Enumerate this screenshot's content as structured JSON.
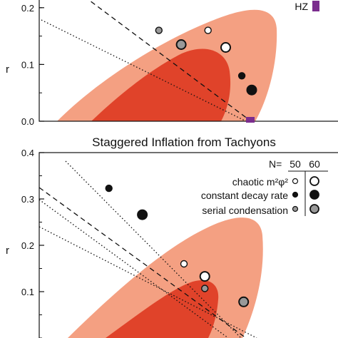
{
  "chart_data": [
    {
      "type": "scatter",
      "title": "",
      "xlabel": "",
      "ylabel": "r",
      "ylim": [
        0.0,
        0.25
      ],
      "yticks": [
        "0.0",
        "0.1",
        "0.2"
      ],
      "legend": [
        "HZ"
      ],
      "colors": {
        "outer_contour": "#f4a082",
        "inner_contour": "#e0432a",
        "hz_marker": "#7b2d8e"
      },
      "series": [
        {
          "name": "chaotic m²φ²",
          "points": [
            {
              "x": 0.966,
              "y": 0.16
            },
            {
              "x": 0.9683,
              "y": 0.13
            }
          ]
        },
        {
          "name": "constant decay rate",
          "points": [
            {
              "x": 0.9704,
              "y": 0.08
            },
            {
              "x": 0.9717,
              "y": 0.055
            }
          ]
        },
        {
          "name": "serial condensation",
          "points": [
            {
              "x": 0.9596,
              "y": 0.16
            },
            {
              "x": 0.9625,
              "y": 0.135
            }
          ]
        }
      ]
    },
    {
      "type": "scatter",
      "title": "Staggered Inflation from Tachyons",
      "xlabel": "",
      "ylabel": "r",
      "ylim": [
        0.0,
        0.4
      ],
      "yticks": [
        "0.1",
        "0.2",
        "0.3",
        "0.4"
      ],
      "legend_header": {
        "label": "N=",
        "columns": [
          "50",
          "60"
        ]
      },
      "legend": [
        "chaotic m²φ²",
        "constant decay rate",
        "serial condensation"
      ],
      "colors": {
        "outer_contour": "#f4a082",
        "inner_contour": "#e0432a"
      },
      "series": [
        {
          "name": "chaotic m²φ²",
          "points": [
            {
              "x": 0.966,
              "y": 0.16
            },
            {
              "x": 0.9683,
              "y": 0.133
            }
          ]
        },
        {
          "name": "constant decay rate",
          "points": [
            {
              "x": 0.9577,
              "y": 0.323
            },
            {
              "x": 0.9614,
              "y": 0.266
            }
          ]
        },
        {
          "name": "serial condensation",
          "points": [
            {
              "x": 0.9683,
              "y": 0.107
            },
            {
              "x": 0.9726,
              "y": 0.078
            }
          ]
        }
      ]
    }
  ]
}
